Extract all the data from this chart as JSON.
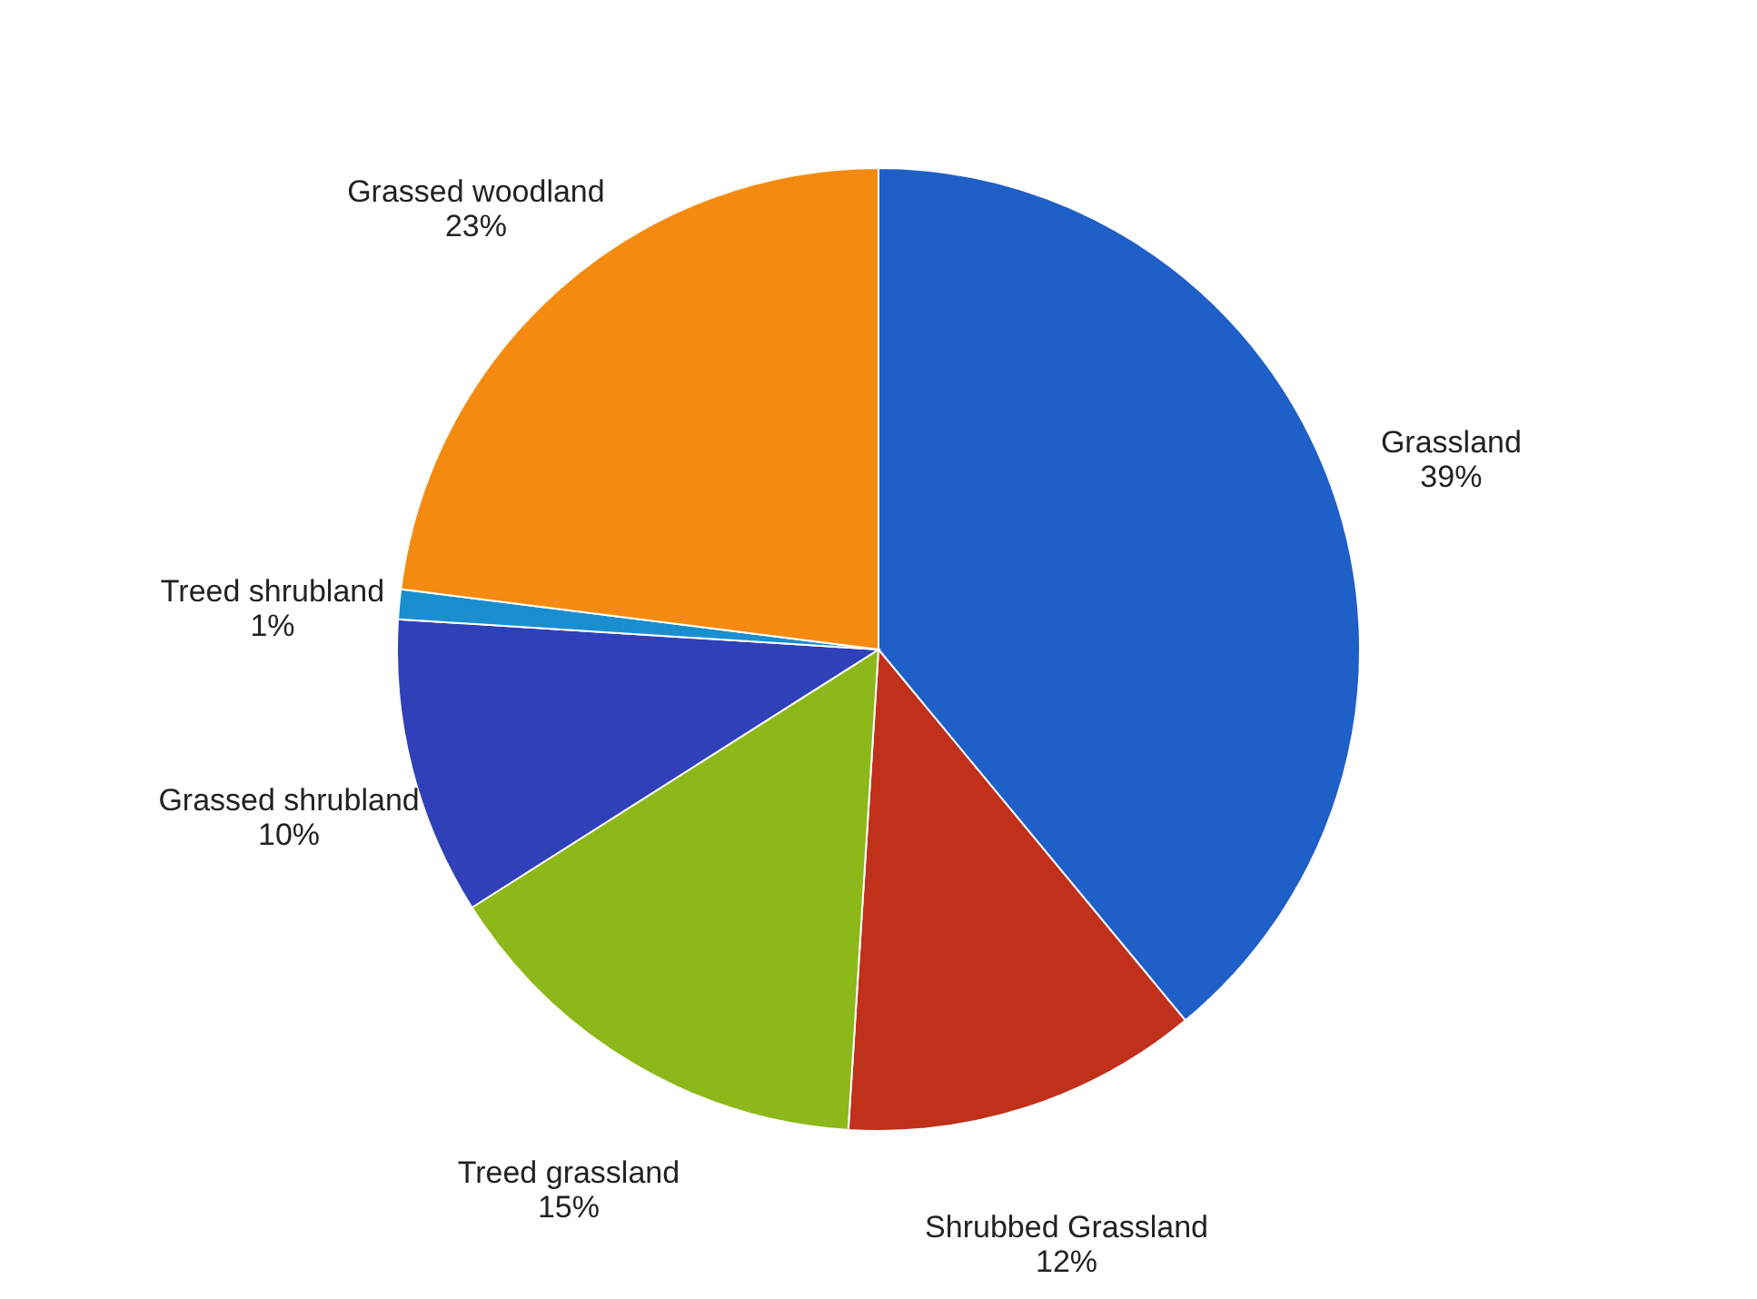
{
  "chart_data": {
    "type": "pie",
    "categories": [
      "Grassland",
      "Shrubbed Grassland",
      "Treed grassland",
      "Grassed shrubland",
      "Treed shrubland",
      "Grassed woodland"
    ],
    "values": [
      39,
      12,
      15,
      10,
      1,
      23
    ],
    "value_labels": [
      "39%",
      "12%",
      "15%",
      "10%",
      "1%",
      "23%"
    ],
    "colors": [
      "#1f5fc8",
      "#c0301a",
      "#8db81a",
      "#3040b8",
      "#1a8fd0",
      "#f58a10"
    ]
  }
}
